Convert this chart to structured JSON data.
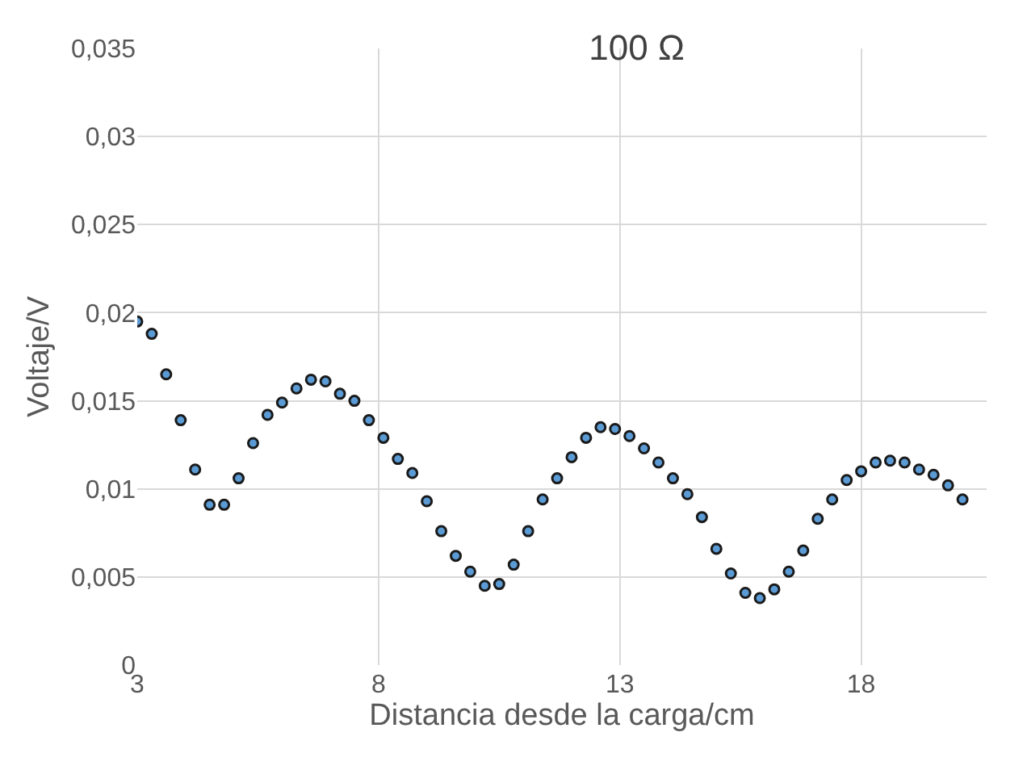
{
  "chart_data": {
    "type": "scatter",
    "title": "100 Ω",
    "xlabel": "Distancia desde la carga/cm",
    "ylabel": "Voltaje/V",
    "x": [
      3,
      3.3,
      3.6,
      3.9,
      4.2,
      4.5,
      4.8,
      5.1,
      5.4,
      5.7,
      6,
      6.3,
      6.6,
      6.9,
      7.2,
      7.5,
      7.8,
      8.1,
      8.4,
      8.7,
      9,
      9.3,
      9.6,
      9.9,
      10.2,
      10.5,
      10.8,
      11.1,
      11.4,
      11.7,
      12,
      12.3,
      12.6,
      12.9,
      13.2,
      13.5,
      13.8,
      14.1,
      14.4,
      14.7,
      15,
      15.3,
      15.6,
      15.9,
      16.2,
      16.5,
      16.8,
      17.1,
      17.4,
      17.7,
      18,
      18.3,
      18.6,
      18.9,
      19.2,
      19.5,
      19.8,
      20.1
    ],
    "series": [
      {
        "color": "#5b9bd5",
        "values": [
          0.0195,
          0.0188,
          0.0165,
          0.0139,
          0.0111,
          0.0091,
          0.0091,
          0.0106,
          0.0126,
          0.0142,
          0.0149,
          0.0157,
          0.0162,
          0.0161,
          0.0154,
          0.015,
          0.0139,
          0.0129,
          0.0117,
          0.0109,
          0.0093,
          0.0076,
          0.0062,
          0.0053,
          0.0045,
          0.0046,
          0.0057,
          0.0076,
          0.0094,
          0.0106,
          0.0118,
          0.0129,
          0.0135,
          0.0134,
          0.013,
          0.0123,
          0.0115,
          0.0106,
          0.0097,
          0.0084,
          0.0066,
          0.0052,
          0.0041,
          0.0038,
          0.0043,
          0.0053,
          0.0065,
          0.0083,
          0.0094,
          0.0105,
          0.011,
          0.0115,
          0.0116,
          0.0115,
          0.0111,
          0.0108,
          0.0102,
          0.0094
        ]
      }
    ],
    "xlim": [
      3,
      20.6
    ],
    "xticks": [
      3,
      8,
      13,
      18
    ],
    "ylim": [
      0,
      0.035
    ],
    "yticks": [
      0,
      {
        "value": 0.005,
        "label": "0,005"
      },
      {
        "value": 0.01,
        "label": "0,01"
      },
      {
        "value": 0.015,
        "label": "0,015"
      },
      {
        "value": 0.02,
        "label": "0,02"
      },
      {
        "value": 0.025,
        "label": "0,025"
      },
      {
        "value": 0.03,
        "label": "0,03"
      },
      {
        "value": 0.035,
        "label": "0,035"
      }
    ],
    "grid": true,
    "marker": "circle"
  }
}
